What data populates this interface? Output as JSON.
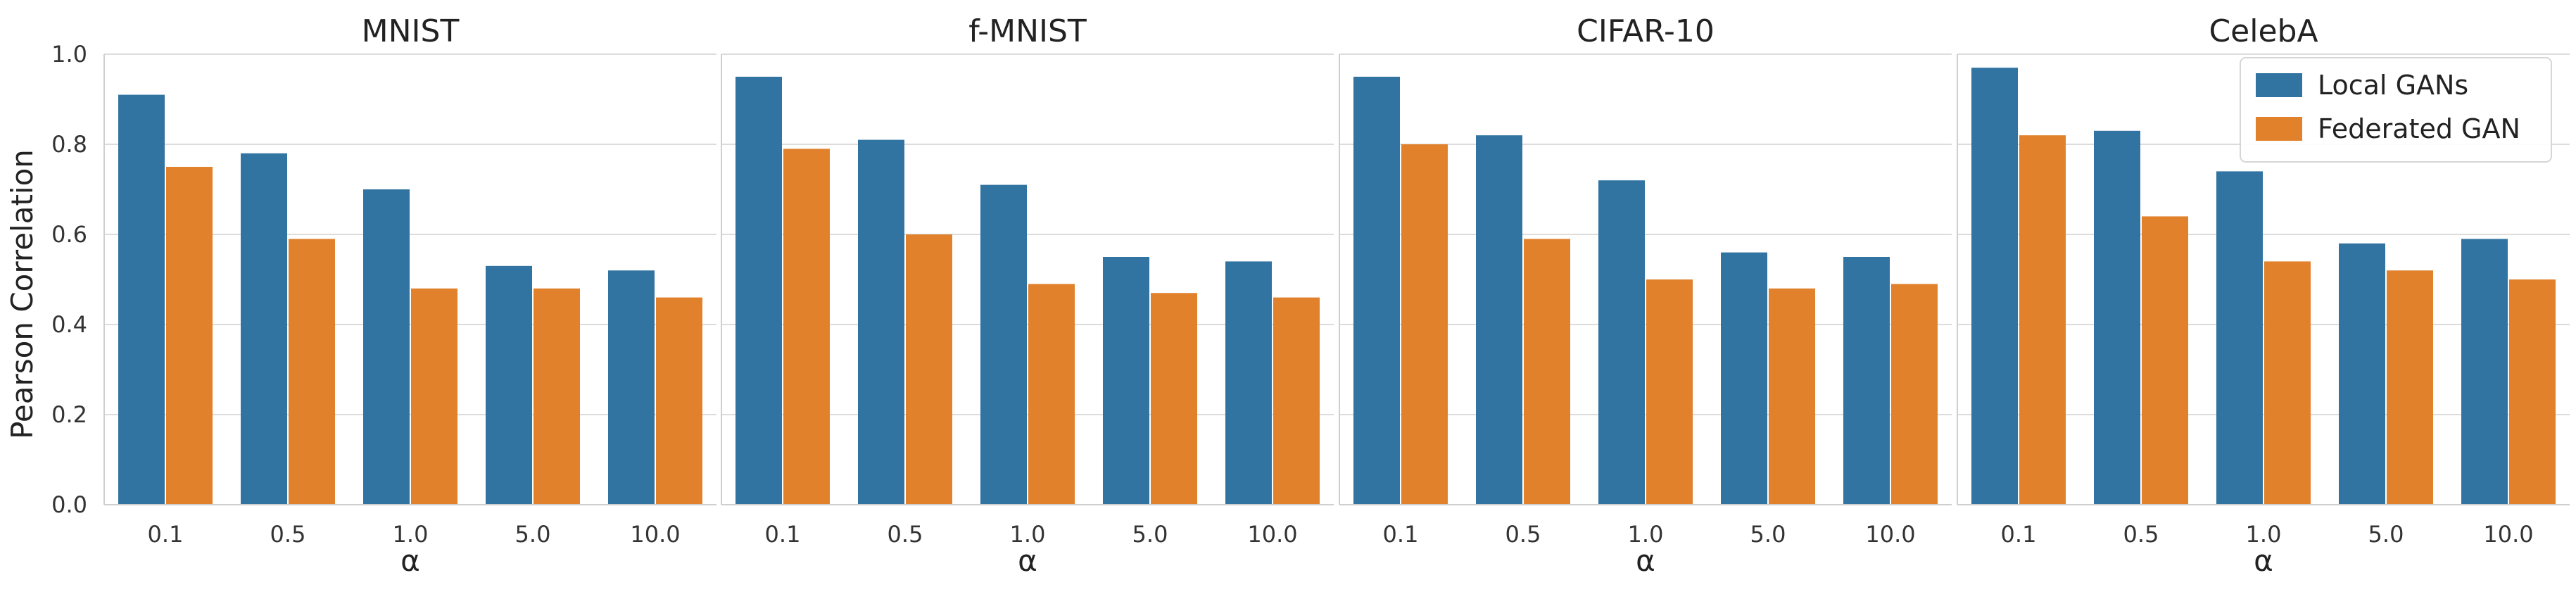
{
  "chart_data": {
    "type": "bar",
    "ylabel": "Pearson Correlation",
    "ylim": [
      0,
      1.0
    ],
    "yticks": [
      "0.0",
      "0.2",
      "0.4",
      "0.6",
      "0.8",
      "1.0"
    ],
    "grid": "horizontal",
    "legend": {
      "placement": "top-right",
      "entries": [
        "Local GANs",
        "Federated GAN"
      ]
    },
    "colors": {
      "Local GANs": "#3274a1",
      "Federated GAN": "#e1812c"
    },
    "panels": [
      {
        "title": "MNIST",
        "xlabel": "α",
        "categories": [
          "0.1",
          "0.5",
          "1.0",
          "5.0",
          "10.0"
        ],
        "series": [
          {
            "name": "Local GANs",
            "values": [
              0.91,
              0.78,
              0.7,
              0.53,
              0.52
            ]
          },
          {
            "name": "Federated GAN",
            "values": [
              0.75,
              0.59,
              0.48,
              0.48,
              0.46
            ]
          }
        ]
      },
      {
        "title": "f-MNIST",
        "xlabel": "α",
        "categories": [
          "0.1",
          "0.5",
          "1.0",
          "5.0",
          "10.0"
        ],
        "series": [
          {
            "name": "Local GANs",
            "values": [
              0.95,
              0.81,
              0.71,
              0.55,
              0.54
            ]
          },
          {
            "name": "Federated GAN",
            "values": [
              0.79,
              0.6,
              0.49,
              0.47,
              0.46
            ]
          }
        ]
      },
      {
        "title": "CIFAR-10",
        "xlabel": "α",
        "categories": [
          "0.1",
          "0.5",
          "1.0",
          "5.0",
          "10.0"
        ],
        "series": [
          {
            "name": "Local GANs",
            "values": [
              0.95,
              0.82,
              0.72,
              0.56,
              0.55
            ]
          },
          {
            "name": "Federated GAN",
            "values": [
              0.8,
              0.59,
              0.5,
              0.48,
              0.49
            ]
          }
        ]
      },
      {
        "title": "CelebA",
        "xlabel": "α",
        "categories": [
          "0.1",
          "0.5",
          "1.0",
          "5.0",
          "10.0"
        ],
        "series": [
          {
            "name": "Local GANs",
            "values": [
              0.97,
              0.83,
              0.74,
              0.58,
              0.59
            ]
          },
          {
            "name": "Federated GAN",
            "values": [
              0.82,
              0.64,
              0.54,
              0.52,
              0.5
            ]
          }
        ]
      }
    ]
  }
}
